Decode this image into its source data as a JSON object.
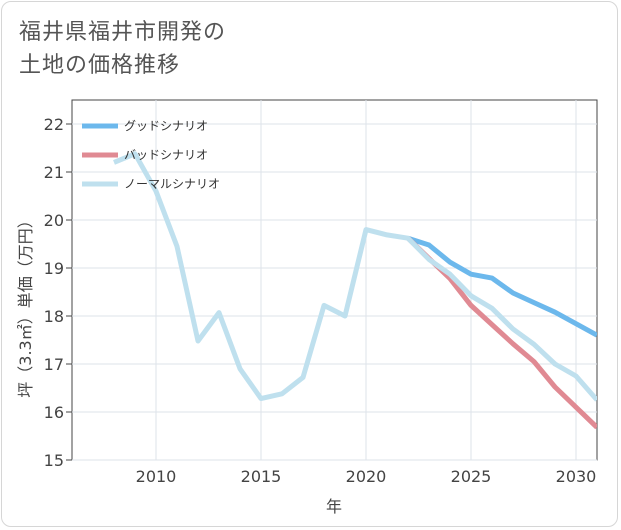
{
  "title": "福井県福井市開発の\n土地の価格推移",
  "chart_data": {
    "type": "line",
    "xlabel": "年",
    "ylabel": "坪（3.3㎡）単価（万円）",
    "xlim": [
      2006,
      2031
    ],
    "ylim": [
      15,
      22.5
    ],
    "x_ticks": [
      2010,
      2015,
      2020,
      2025,
      2030
    ],
    "y_ticks": [
      15,
      16,
      17,
      18,
      19,
      20,
      21,
      22
    ],
    "grid": true,
    "legend_position": "top-left",
    "series": [
      {
        "name": "グッドシナリオ",
        "color": "#6cb8ec",
        "x": [
          2022,
          2023,
          2024,
          2025,
          2026,
          2027,
          2028,
          2029,
          2030,
          2031
        ],
        "values": [
          19.62,
          19.48,
          19.12,
          18.87,
          18.79,
          18.48,
          18.28,
          18.08,
          17.84,
          17.6
        ]
      },
      {
        "name": "バッドシナリオ",
        "color": "#e08a93",
        "x": [
          2022,
          2023,
          2024,
          2025,
          2026,
          2027,
          2028,
          2029,
          2030,
          2031
        ],
        "values": [
          19.62,
          19.2,
          18.78,
          18.22,
          17.82,
          17.42,
          17.05,
          16.52,
          16.1,
          15.68
        ]
      },
      {
        "name": "ノーマルシナリオ",
        "color": "#bfe0ee",
        "x": [
          2008,
          2009,
          2010,
          2011,
          2012,
          2013,
          2014,
          2015,
          2016,
          2017,
          2018,
          2019,
          2020,
          2021,
          2022,
          2023,
          2024,
          2025,
          2026,
          2027,
          2028,
          2029,
          2030,
          2031
        ],
        "values": [
          21.2,
          21.38,
          20.6,
          19.45,
          17.48,
          18.07,
          16.9,
          16.28,
          16.38,
          16.72,
          18.22,
          18.0,
          19.8,
          19.69,
          19.62,
          19.18,
          18.87,
          18.42,
          18.16,
          17.73,
          17.41,
          17.0,
          16.75,
          16.25
        ]
      }
    ]
  }
}
